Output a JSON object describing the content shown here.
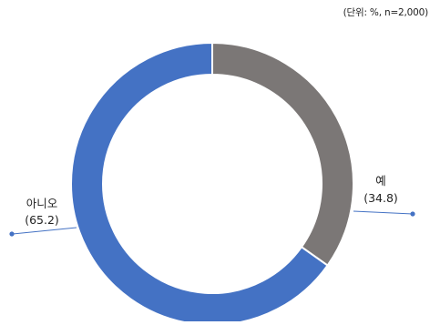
{
  "chart_data": {
    "type": "pie",
    "variant": "donut",
    "unit_note": "(단위: %, n=2,000)",
    "slices": [
      {
        "label": "예",
        "value": 34.8,
        "value_text": "(34.8)",
        "color": "#7b7776"
      },
      {
        "label": "아니오",
        "value": 65.2,
        "value_text": "(65.2)",
        "color": "#4472c4"
      }
    ],
    "legend": "none",
    "leader_line_color": "#4472c4"
  }
}
